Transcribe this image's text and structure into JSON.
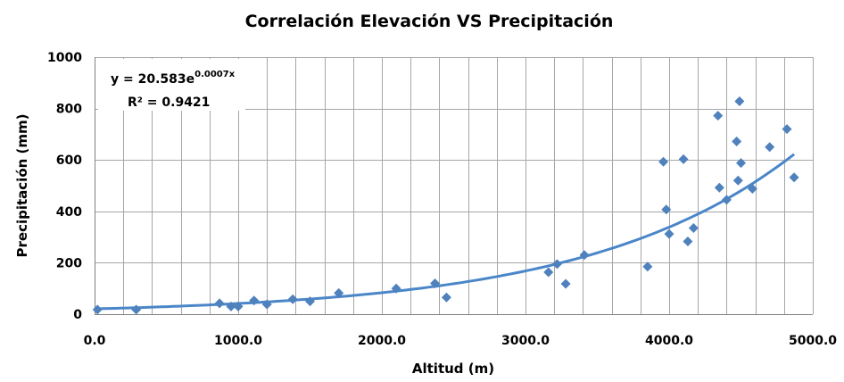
{
  "chart_data": {
    "type": "scatter",
    "title": "Correlación Elevación VS Precipitación",
    "xlabel": "Altitud (m)",
    "ylabel": "Precipitación (mm)",
    "xlim": [
      0,
      5000
    ],
    "ylim": [
      0,
      1000
    ],
    "x_ticks": [
      "0.0",
      "1000.0",
      "2000.0",
      "3000.0",
      "4000.0",
      "5000.0"
    ],
    "y_ticks": [
      "0",
      "200",
      "400",
      "600",
      "800",
      "1000"
    ],
    "x_gridlines": [
      0,
      200,
      400,
      600,
      800,
      1000,
      1200,
      1400,
      1600,
      1800,
      2000,
      2200,
      2400,
      2600,
      2800,
      3000,
      3200,
      3400,
      3600,
      3800,
      4000,
      4200,
      4400,
      4600,
      4800,
      5000
    ],
    "y_gridlines": [
      0,
      200,
      400,
      600,
      800,
      1000
    ],
    "grid": true,
    "marker": "diamond",
    "point_color": "#4f81bd",
    "trend_color": "#4a86c8",
    "points": [
      {
        "x": 20,
        "y": 18
      },
      {
        "x": 290,
        "y": 18
      },
      {
        "x": 870,
        "y": 42
      },
      {
        "x": 950,
        "y": 30
      },
      {
        "x": 1000,
        "y": 30
      },
      {
        "x": 1110,
        "y": 53
      },
      {
        "x": 1200,
        "y": 38
      },
      {
        "x": 1380,
        "y": 58
      },
      {
        "x": 1500,
        "y": 50
      },
      {
        "x": 1700,
        "y": 82
      },
      {
        "x": 2100,
        "y": 100
      },
      {
        "x": 2370,
        "y": 120
      },
      {
        "x": 2450,
        "y": 65
      },
      {
        "x": 3160,
        "y": 163
      },
      {
        "x": 3220,
        "y": 195
      },
      {
        "x": 3280,
        "y": 118
      },
      {
        "x": 3410,
        "y": 230
      },
      {
        "x": 3850,
        "y": 185
      },
      {
        "x": 3960,
        "y": 593
      },
      {
        "x": 3980,
        "y": 407
      },
      {
        "x": 4000,
        "y": 312
      },
      {
        "x": 4100,
        "y": 603
      },
      {
        "x": 4130,
        "y": 283
      },
      {
        "x": 4170,
        "y": 335
      },
      {
        "x": 4340,
        "y": 772
      },
      {
        "x": 4350,
        "y": 492
      },
      {
        "x": 4400,
        "y": 445
      },
      {
        "x": 4470,
        "y": 672
      },
      {
        "x": 4480,
        "y": 520
      },
      {
        "x": 4490,
        "y": 828
      },
      {
        "x": 4500,
        "y": 588
      },
      {
        "x": 4580,
        "y": 488
      },
      {
        "x": 4700,
        "y": 650
      },
      {
        "x": 4820,
        "y": 720
      },
      {
        "x": 4870,
        "y": 532
      }
    ],
    "trendline": {
      "type": "exponential",
      "a": 20.583,
      "b": 0.0007,
      "equation_base": "y = 20.583e",
      "equation_exp": "0.0007x",
      "r2_label": "R² = 0.9421"
    }
  }
}
